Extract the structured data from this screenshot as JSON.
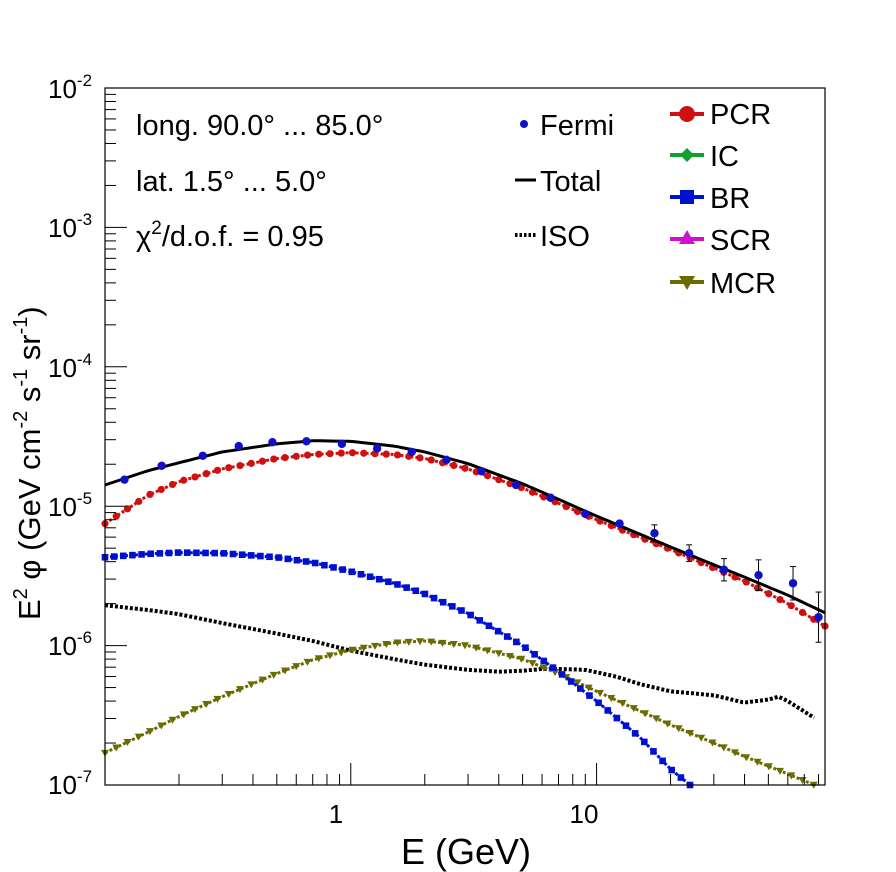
{
  "chart_data": {
    "type": "line",
    "xlabel": "E (GeV)",
    "ylabel": "E",
    "ylabel_sup": "2",
    "ylabel_phi": "φ (GeV cm",
    "ylabel_sup2": "-2",
    "ylabel_mid": " s",
    "ylabel_sup3": "-1",
    "ylabel_mid2": " sr",
    "ylabel_sup4": "-1",
    "ylabel_end": ")",
    "xscale": "log",
    "yscale": "log",
    "xlim": [
      0.1,
      85
    ],
    "ylim": [
      1e-07,
      0.01
    ],
    "xticks": [
      {
        "value": 1,
        "label": "1"
      },
      {
        "value": 10,
        "label": "10"
      }
    ],
    "yticks": [
      {
        "value": 1e-07,
        "base": "10",
        "exp": "-7"
      },
      {
        "value": 1e-06,
        "base": "10",
        "exp": "-6"
      },
      {
        "value": 1e-05,
        "base": "10",
        "exp": "-5"
      },
      {
        "value": 0.0001,
        "base": "10",
        "exp": "-4"
      },
      {
        "value": 0.001,
        "base": "10",
        "exp": "-3"
      },
      {
        "value": 0.01,
        "base": "10",
        "exp": "-2"
      }
    ],
    "annotations": {
      "longitude": "long. 90.0° ... 85.0°",
      "latitude": "lat. 1.5° ... 5.0°",
      "chi_prefix": "χ",
      "chi_sup": "2",
      "chi_rest": "/d.o.f. = 0.95"
    },
    "legend_left": [
      {
        "label": "Fermi",
        "style": "dot",
        "color": "#1010c8"
      },
      {
        "label": "Total",
        "style": "line",
        "color": "#000000"
      },
      {
        "label": "ISO",
        "style": "dotted",
        "color": "#000000"
      }
    ],
    "legend_right": [
      {
        "label": "PCR",
        "marker": "circle",
        "color": "#d01010"
      },
      {
        "label": "IC",
        "marker": "diamond",
        "color": "#10a030"
      },
      {
        "label": "BR",
        "marker": "square",
        "color": "#0010d0"
      },
      {
        "label": "SCR",
        "marker": "triangle-up",
        "color": "#d010d0"
      },
      {
        "label": "MCR",
        "marker": "triangle-down",
        "color": "#6b6b00"
      }
    ],
    "series": [
      {
        "name": "Total",
        "style": "line",
        "color": "#000000",
        "points": [
          [
            0.1,
            1.42e-05
          ],
          [
            0.15,
            1.8e-05
          ],
          [
            0.2,
            2.05e-05
          ],
          [
            0.3,
            2.45e-05
          ],
          [
            0.5,
            2.8e-05
          ],
          [
            0.7,
            2.95e-05
          ],
          [
            1.0,
            2.92e-05
          ],
          [
            1.5,
            2.7e-05
          ],
          [
            2.0,
            2.45e-05
          ],
          [
            3.0,
            2.02e-05
          ],
          [
            5.0,
            1.45e-05
          ],
          [
            7.0,
            1.12e-05
          ],
          [
            10,
            8.5e-06
          ],
          [
            15,
            6.3e-06
          ],
          [
            20,
            5.1e-06
          ],
          [
            30,
            3.8e-06
          ],
          [
            40,
            3.1e-06
          ],
          [
            60,
            2.3e-06
          ],
          [
            85,
            1.72e-06
          ]
        ]
      },
      {
        "name": "PCR",
        "style": "markers-dense",
        "marker": "circle",
        "color": "#d01010",
        "points": [
          [
            0.1,
            7.5e-06
          ],
          [
            0.15,
            1.2e-05
          ],
          [
            0.2,
            1.5e-05
          ],
          [
            0.3,
            1.85e-05
          ],
          [
            0.5,
            2.2e-05
          ],
          [
            0.7,
            2.35e-05
          ],
          [
            1.0,
            2.42e-05
          ],
          [
            1.5,
            2.35e-05
          ],
          [
            2.0,
            2.2e-05
          ],
          [
            3.0,
            1.85e-05
          ],
          [
            5.0,
            1.35e-05
          ],
          [
            7.0,
            1.05e-05
          ],
          [
            10,
            8e-06
          ],
          [
            15,
            6e-06
          ],
          [
            20,
            4.9e-06
          ],
          [
            30,
            3.6e-06
          ],
          [
            40,
            2.9e-06
          ],
          [
            60,
            2e-06
          ],
          [
            85,
            1.38e-06
          ]
        ]
      },
      {
        "name": "BR",
        "style": "markers-dense",
        "marker": "square",
        "color": "#0010d0",
        "points": [
          [
            0.1,
            4.3e-06
          ],
          [
            0.15,
            4.55e-06
          ],
          [
            0.2,
            4.65e-06
          ],
          [
            0.3,
            4.6e-06
          ],
          [
            0.5,
            4.3e-06
          ],
          [
            0.7,
            3.95e-06
          ],
          [
            1.0,
            3.4e-06
          ],
          [
            1.5,
            2.8e-06
          ],
          [
            2.0,
            2.35e-06
          ],
          [
            3.0,
            1.7e-06
          ],
          [
            5.0,
            1e-06
          ],
          [
            7.0,
            6.5e-07
          ],
          [
            10,
            4e-07
          ],
          [
            15,
            2.2e-07
          ],
          [
            20,
            1.3e-07
          ],
          [
            24,
            1e-07
          ]
        ]
      },
      {
        "name": "ISO",
        "style": "dotted",
        "color": "#000000",
        "points": [
          [
            0.1,
            1.95e-06
          ],
          [
            0.15,
            1.8e-06
          ],
          [
            0.2,
            1.68e-06
          ],
          [
            0.3,
            1.45e-06
          ],
          [
            0.5,
            1.22e-06
          ],
          [
            0.7,
            1.08e-06
          ],
          [
            1.0,
            9.2e-07
          ],
          [
            1.5,
            8e-07
          ],
          [
            2.0,
            7.3e-07
          ],
          [
            3.0,
            6.7e-07
          ],
          [
            4.0,
            6.5e-07
          ],
          [
            5.0,
            6.6e-07
          ],
          [
            6.0,
            6.8e-07
          ],
          [
            7.0,
            6.8e-07
          ],
          [
            9.0,
            6.7e-07
          ],
          [
            12,
            6e-07
          ],
          [
            15,
            5.3e-07
          ],
          [
            20,
            4.7e-07
          ],
          [
            30,
            4.4e-07
          ],
          [
            40,
            3.9e-07
          ],
          [
            50,
            4.1e-07
          ],
          [
            55,
            4.3e-07
          ],
          [
            60,
            4e-07
          ],
          [
            80,
            2.9e-07
          ]
        ]
      },
      {
        "name": "MCR",
        "style": "markers-dense",
        "marker": "triangle-down",
        "color": "#6b6b00",
        "points": [
          [
            0.1,
            1.7e-07
          ],
          [
            0.15,
            2.4e-07
          ],
          [
            0.2,
            3.1e-07
          ],
          [
            0.3,
            4.3e-07
          ],
          [
            0.5,
            6.3e-07
          ],
          [
            0.7,
            7.9e-07
          ],
          [
            1.0,
            9.3e-07
          ],
          [
            1.5,
            1.05e-06
          ],
          [
            2.0,
            1.08e-06
          ],
          [
            3.0,
            1e-06
          ],
          [
            5.0,
            8e-07
          ],
          [
            7.0,
            6.3e-07
          ],
          [
            10,
            4.7e-07
          ],
          [
            15,
            3.4e-07
          ],
          [
            20,
            2.7e-07
          ],
          [
            30,
            2e-07
          ],
          [
            40,
            1.6e-07
          ],
          [
            60,
            1.2e-07
          ],
          [
            85,
            9.3e-08
          ]
        ]
      },
      {
        "name": "Fermi",
        "style": "points",
        "marker": "dot",
        "color": "#1010c8",
        "points": [
          [
            0.12,
            1.55e-05
          ],
          [
            0.17,
            1.95e-05
          ],
          [
            0.25,
            2.3e-05
          ],
          [
            0.35,
            2.7e-05
          ],
          [
            0.48,
            2.88e-05
          ],
          [
            0.66,
            2.92e-05
          ],
          [
            0.92,
            2.8e-05
          ],
          [
            1.28,
            2.6e-05
          ],
          [
            1.77,
            2.45e-05
          ],
          [
            2.45,
            2.15e-05
          ],
          [
            3.4,
            1.78e-05
          ],
          [
            4.7,
            1.42e-05
          ],
          [
            6.5,
            1.15e-05
          ],
          [
            9.0,
            8.8e-06
          ],
          [
            12.4,
            7.5e-06
          ],
          [
            17.2,
            6.4e-06
          ],
          [
            23.8,
            4.6e-06
          ],
          [
            33,
            3.5e-06
          ],
          [
            45.6,
            3.2e-06
          ],
          [
            63,
            2.8e-06
          ],
          [
            80,
            1.6e-06
          ]
        ],
        "errors": [
          [
            0.12,
            0
          ],
          [
            0.17,
            0
          ],
          [
            0.25,
            0
          ],
          [
            0.35,
            0
          ],
          [
            0.48,
            0
          ],
          [
            0.66,
            0
          ],
          [
            0.92,
            0
          ],
          [
            1.28,
            0
          ],
          [
            1.77,
            0
          ],
          [
            2.45,
            0
          ],
          [
            3.4,
            0
          ],
          [
            4.7,
            0
          ],
          [
            6.5,
            0
          ],
          [
            9.0,
            0
          ],
          [
            12.4,
            0
          ],
          [
            17.2,
            0.06
          ],
          [
            23.8,
            0.06
          ],
          [
            33,
            0.08
          ],
          [
            45.6,
            0.11
          ],
          [
            63,
            0.12
          ],
          [
            80,
            0.18
          ]
        ]
      }
    ]
  }
}
